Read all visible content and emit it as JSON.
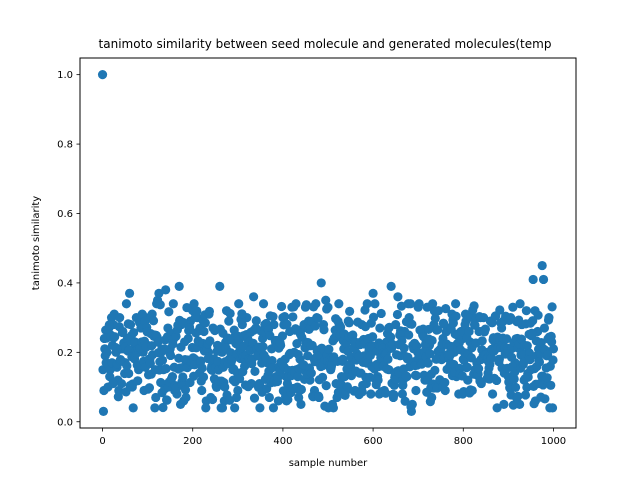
{
  "chart_data": {
    "type": "scatter",
    "title": "tanimoto similarity between seed molecule and generated molecules(temp",
    "xlabel": "sample number",
    "ylabel": "tanimoto similarity",
    "xlim": [
      -50,
      1050
    ],
    "ylim": [
      -0.018,
      1.048
    ],
    "xticks": [
      0,
      200,
      400,
      600,
      800,
      1000
    ],
    "yticks": [
      0.0,
      0.2,
      0.4,
      0.6,
      0.8,
      1.0
    ],
    "xtick_labels": [
      "0",
      "200",
      "400",
      "600",
      "800",
      "1000"
    ],
    "ytick_labels": [
      "0.0",
      "0.2",
      "0.4",
      "0.6",
      "0.8",
      "1.0"
    ],
    "grid": false,
    "legend": "none",
    "marker_color": "#1f77b4",
    "sample_count": 1000,
    "series": [
      {
        "points": [
          [
            0,
            1.0
          ],
          [
            2,
            0.03
          ],
          [
            1,
            0.15
          ],
          [
            3,
            0.09
          ],
          [
            4,
            0.24
          ],
          [
            5,
            0.21
          ],
          [
            6,
            0.19
          ],
          [
            8,
            0.17
          ],
          [
            10,
            0.2
          ],
          [
            12,
            0.1
          ],
          [
            14,
            0.27
          ],
          [
            16,
            0.13
          ],
          [
            18,
            0.25
          ],
          [
            20,
            0.3
          ],
          [
            22,
            0.22
          ],
          [
            24,
            0.28
          ],
          [
            26,
            0.31
          ],
          [
            28,
            0.16
          ],
          [
            30,
            0.2
          ],
          [
            34,
            0.12
          ],
          [
            38,
            0.3
          ],
          [
            42,
            0.11
          ],
          [
            46,
            0.21
          ],
          [
            50,
            0.17
          ],
          [
            55,
            0.24
          ],
          [
            60,
            0.37
          ],
          [
            62,
            0.28
          ],
          [
            66,
            0.1
          ],
          [
            70,
            0.21
          ],
          [
            75,
            0.3
          ],
          [
            80,
            0.15
          ],
          [
            85,
            0.27
          ],
          [
            90,
            0.2
          ],
          [
            92,
            0.09
          ],
          [
            96,
            0.3
          ],
          [
            100,
            0.22
          ],
          [
            105,
            0.18
          ],
          [
            110,
            0.31
          ],
          [
            115,
            0.25
          ],
          [
            118,
            0.07
          ],
          [
            122,
            0.35
          ],
          [
            125,
            0.37
          ],
          [
            130,
            0.2
          ],
          [
            135,
            0.15
          ],
          [
            140,
            0.38
          ],
          [
            145,
            0.27
          ],
          [
            150,
            0.21
          ],
          [
            155,
            0.13
          ],
          [
            160,
            0.09
          ],
          [
            165,
            0.08
          ],
          [
            170,
            0.39
          ],
          [
            175,
            0.28
          ],
          [
            180,
            0.06
          ],
          [
            185,
            0.07
          ],
          [
            190,
            0.24
          ],
          [
            195,
            0.29
          ],
          [
            200,
            0.32
          ],
          [
            205,
            0.18
          ],
          [
            210,
            0.3
          ],
          [
            215,
            0.14
          ],
          [
            220,
            0.09
          ],
          [
            225,
            0.26
          ],
          [
            230,
            0.06
          ],
          [
            235,
            0.2
          ],
          [
            240,
            0.07
          ],
          [
            245,
            0.27
          ],
          [
            250,
            0.12
          ],
          [
            255,
            0.22
          ],
          [
            260,
            0.39
          ],
          [
            265,
            0.2
          ],
          [
            270,
            0.06
          ],
          [
            275,
            0.32
          ],
          [
            280,
            0.29
          ],
          [
            285,
            0.17
          ],
          [
            290,
            0.12
          ],
          [
            295,
            0.25
          ],
          [
            300,
            0.09
          ],
          [
            305,
            0.21
          ],
          [
            310,
            0.28
          ],
          [
            315,
            0.16
          ],
          [
            320,
            0.3
          ],
          [
            325,
            0.22
          ],
          [
            330,
            0.11
          ],
          [
            335,
            0.36
          ],
          [
            340,
            0.27
          ],
          [
            345,
            0.19
          ],
          [
            350,
            0.1
          ],
          [
            355,
            0.24
          ],
          [
            360,
            0.28
          ],
          [
            365,
            0.17
          ],
          [
            370,
            0.07
          ],
          [
            375,
            0.21
          ],
          [
            380,
            0.28
          ],
          [
            385,
            0.13
          ],
          [
            390,
            0.06
          ],
          [
            395,
            0.22
          ],
          [
            400,
            0.3
          ],
          [
            405,
            0.18
          ],
          [
            410,
            0.11
          ],
          [
            415,
            0.26
          ],
          [
            420,
            0.33
          ],
          [
            425,
            0.2
          ],
          [
            430,
            0.15
          ],
          [
            435,
            0.07
          ],
          [
            440,
            0.05
          ],
          [
            445,
            0.27
          ],
          [
            450,
            0.33
          ],
          [
            455,
            0.19
          ],
          [
            460,
            0.12
          ],
          [
            465,
            0.22
          ],
          [
            470,
            0.09
          ],
          [
            475,
            0.3
          ],
          [
            480,
            0.07
          ],
          [
            485,
            0.4
          ],
          [
            490,
            0.28
          ],
          [
            495,
            0.35
          ],
          [
            500,
            0.33
          ],
          [
            505,
            0.17
          ],
          [
            510,
            0.05
          ],
          [
            515,
            0.24
          ],
          [
            520,
            0.07
          ],
          [
            525,
            0.28
          ],
          [
            530,
            0.13
          ],
          [
            535,
            0.21
          ],
          [
            540,
            0.09
          ],
          [
            545,
            0.29
          ],
          [
            550,
            0.16
          ],
          [
            555,
            0.25
          ],
          [
            560,
            0.09
          ],
          [
            565,
            0.22
          ],
          [
            570,
            0.14
          ],
          [
            575,
            0.28
          ],
          [
            580,
            0.19
          ],
          [
            585,
            0.11
          ],
          [
            590,
            0.24
          ],
          [
            595,
            0.08
          ],
          [
            600,
            0.37
          ],
          [
            605,
            0.21
          ],
          [
            610,
            0.13
          ],
          [
            615,
            0.27
          ],
          [
            620,
            0.17
          ],
          [
            625,
            0.09
          ],
          [
            630,
            0.23
          ],
          [
            635,
            0.15
          ],
          [
            640,
            0.39
          ],
          [
            645,
            0.07
          ],
          [
            650,
            0.28
          ],
          [
            655,
            0.36
          ],
          [
            660,
            0.19
          ],
          [
            665,
            0.08
          ],
          [
            670,
            0.26
          ],
          [
            675,
            0.13
          ],
          [
            680,
            0.3
          ],
          [
            685,
            0.03
          ],
          [
            690,
            0.21
          ],
          [
            695,
            0.09
          ],
          [
            700,
            0.33
          ],
          [
            705,
            0.17
          ],
          [
            710,
            0.25
          ],
          [
            715,
            0.12
          ],
          [
            720,
            0.33
          ],
          [
            725,
            0.22
          ],
          [
            730,
            0.07
          ],
          [
            735,
            0.28
          ],
          [
            740,
            0.18
          ],
          [
            745,
            0.32
          ],
          [
            750,
            0.11
          ],
          [
            755,
            0.24
          ],
          [
            760,
            0.09
          ],
          [
            765,
            0.27
          ],
          [
            770,
            0.16
          ],
          [
            775,
            0.31
          ],
          [
            780,
            0.2
          ],
          [
            785,
            0.13
          ],
          [
            790,
            0.08
          ],
          [
            795,
            0.26
          ],
          [
            800,
            0.18
          ],
          [
            805,
            0.31
          ],
          [
            810,
            0.12
          ],
          [
            815,
            0.23
          ],
          [
            820,
            0.09
          ],
          [
            825,
            0.28
          ],
          [
            830,
            0.17
          ],
          [
            835,
            0.26
          ],
          [
            840,
            0.11
          ],
          [
            845,
            0.3
          ],
          [
            850,
            0.2
          ],
          [
            855,
            0.14
          ],
          [
            860,
            0.29
          ],
          [
            865,
            0.08
          ],
          [
            870,
            0.23
          ],
          [
            875,
            0.04
          ],
          [
            880,
            0.18
          ],
          [
            885,
            0.27
          ],
          [
            890,
            0.05
          ],
          [
            895,
            0.21
          ],
          [
            900,
            0.13
          ],
          [
            905,
            0.3
          ],
          [
            910,
            0.33
          ],
          [
            915,
            0.17
          ],
          [
            920,
            0.24
          ],
          [
            925,
            0.05
          ],
          [
            930,
            0.28
          ],
          [
            935,
            0.12
          ],
          [
            940,
            0.32
          ],
          [
            945,
            0.2
          ],
          [
            950,
            0.15
          ],
          [
            955,
            0.41
          ],
          [
            960,
            0.06
          ],
          [
            965,
            0.26
          ],
          [
            970,
            0.11
          ],
          [
            975,
            0.45
          ],
          [
            978,
            0.41
          ],
          [
            980,
            0.27
          ],
          [
            985,
            0.19
          ],
          [
            990,
            0.3
          ],
          [
            993,
            0.16
          ],
          [
            996,
            0.23
          ],
          [
            998,
            0.04
          ],
          [
            1000,
            0.21
          ]
        ]
      }
    ]
  }
}
